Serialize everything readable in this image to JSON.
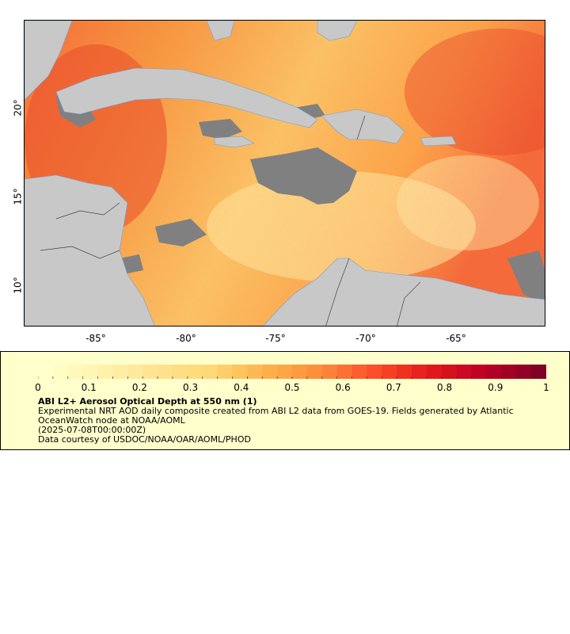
{
  "map": {
    "lon_ticks": [
      "-85°",
      "-80°",
      "-75°",
      "-70°",
      "-65°"
    ],
    "lat_ticks": [
      "20°",
      "15°",
      "10°"
    ],
    "extent": {
      "lon_min": -89.0,
      "lon_max": -59.5,
      "lat_min": 8.0,
      "lat_max": 25.0
    },
    "colors": {
      "land": "#c8c8c8",
      "no_data": "#808080",
      "rivers": "#6f9fd8",
      "borders": "#444444"
    }
  },
  "legend": {
    "colorbar_ticks": [
      "0",
      "0.1",
      "0.2",
      "0.3",
      "0.4",
      "0.5",
      "0.6",
      "0.7",
      "0.8",
      "0.9",
      "1"
    ],
    "colormap": [
      "#ffffcc",
      "#fff3b0",
      "#fee391",
      "#fed976",
      "#feb24c",
      "#fd8d3c",
      "#fc4e2a",
      "#e31a1c",
      "#bd0026",
      "#800026"
    ],
    "title": "ABI L2+ Aerosol Optical Depth at 550 nm (1)",
    "line1": "Experimental NRT AOD daily composite created from ABI L2 data from GOES-19. Fields generated by Atlantic",
    "line2": "OceanWatch node at NOAA/AOML",
    "line3": "(2025-07-08T00:00:00Z)",
    "line4": "Data courtesy of USDOC/NOAA/OAR/AOML/PHOD",
    "background": "#ffffcc"
  }
}
